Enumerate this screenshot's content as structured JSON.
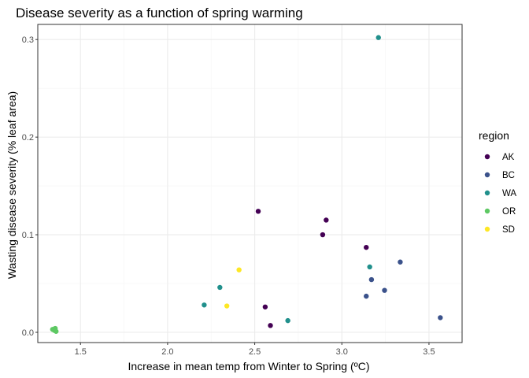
{
  "chart_data": {
    "type": "scatter",
    "title": "Disease severity as a function of spring warming",
    "xlabel": "Increase in mean temp from Winter to Spring (ºC)",
    "ylabel": "Wasting disease severity (% leaf area)",
    "xlim": [
      1.255,
      3.69
    ],
    "ylim": [
      -0.0105,
      0.3155
    ],
    "xticks": [
      1.5,
      2.0,
      2.5,
      3.0,
      3.5
    ],
    "xtick_labels": [
      "1.5",
      "2.0",
      "2.5",
      "3.0",
      "3.5"
    ],
    "yticks": [
      0.0,
      0.1,
      0.2,
      0.3
    ],
    "ytick_labels": [
      "0.0",
      "0.1",
      "0.2",
      "0.3"
    ],
    "grid": true,
    "legend": {
      "title": "region",
      "position": "right",
      "entries": [
        "AK",
        "BC",
        "WA",
        "OR",
        "SD"
      ]
    },
    "series": [
      {
        "name": "AK",
        "color": "#440154",
        "points": [
          {
            "x": 2.52,
            "y": 0.124
          },
          {
            "x": 2.91,
            "y": 0.115
          },
          {
            "x": 2.89,
            "y": 0.1
          },
          {
            "x": 3.14,
            "y": 0.087
          },
          {
            "x": 2.56,
            "y": 0.026
          },
          {
            "x": 2.59,
            "y": 0.007
          }
        ]
      },
      {
        "name": "BC",
        "color": "#3b528b",
        "points": [
          {
            "x": 3.335,
            "y": 0.072
          },
          {
            "x": 3.17,
            "y": 0.054
          },
          {
            "x": 3.245,
            "y": 0.043
          },
          {
            "x": 3.14,
            "y": 0.037
          },
          {
            "x": 3.565,
            "y": 0.015
          }
        ]
      },
      {
        "name": "WA",
        "color": "#21908c",
        "points": [
          {
            "x": 3.21,
            "y": 0.302
          },
          {
            "x": 3.16,
            "y": 0.067
          },
          {
            "x": 2.3,
            "y": 0.046
          },
          {
            "x": 2.21,
            "y": 0.028
          },
          {
            "x": 2.69,
            "y": 0.012
          }
        ]
      },
      {
        "name": "OR",
        "color": "#5dc863",
        "points": [
          {
            "x": 1.345,
            "y": 0.003
          },
          {
            "x": 1.355,
            "y": 0.004
          },
          {
            "x": 1.35,
            "y": 0.002
          },
          {
            "x": 1.36,
            "y": 0.001
          },
          {
            "x": 1.34,
            "y": 0.003
          }
        ]
      },
      {
        "name": "SD",
        "color": "#fde725",
        "points": [
          {
            "x": 2.41,
            "y": 0.064
          },
          {
            "x": 2.34,
            "y": 0.027
          }
        ]
      }
    ],
    "colors": {
      "panel_border": "#333333",
      "grid_major": "#ebebeb",
      "grid_minor": "#f5f5f5",
      "tick_label": "#4d4d4d"
    }
  }
}
